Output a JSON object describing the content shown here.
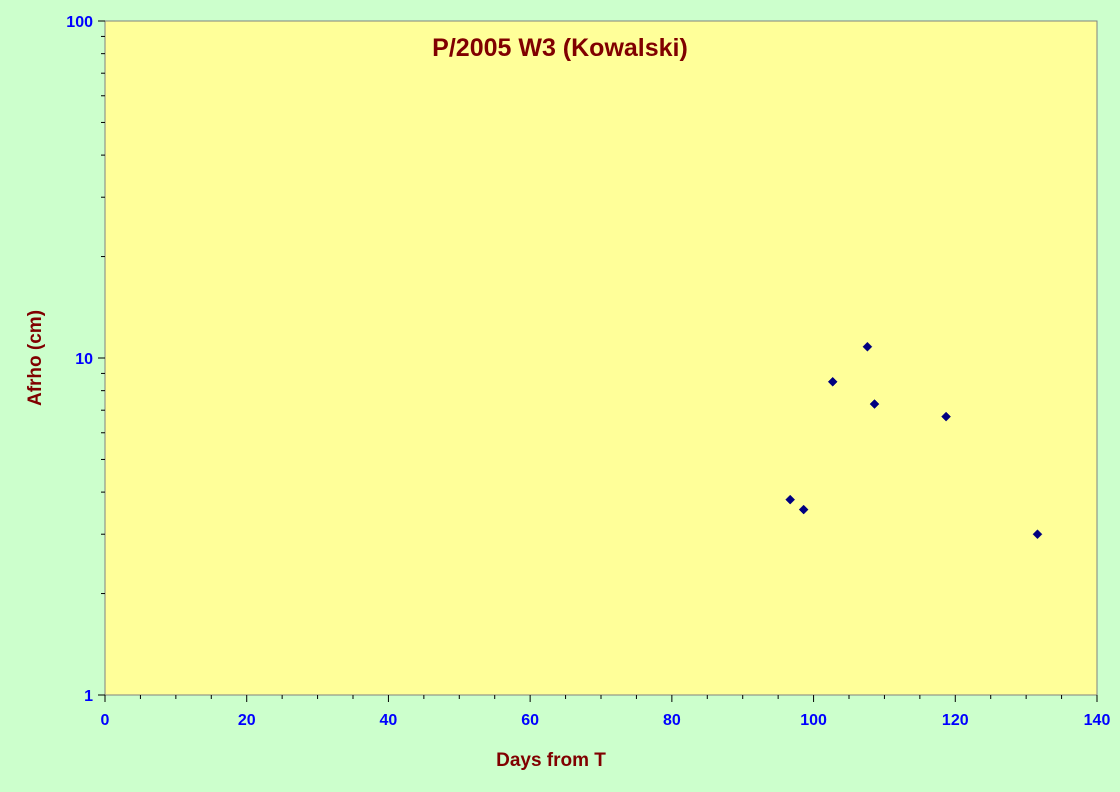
{
  "chart_data": {
    "type": "scatter",
    "title": "P/2005 W3 (Kowalski)",
    "xlabel": "Days from T",
    "ylabel": "Afrho (cm)",
    "xlim": [
      0,
      140
    ],
    "ylim": [
      1,
      100
    ],
    "yscale": "log",
    "x_ticks": [
      0,
      20,
      40,
      60,
      80,
      100,
      120,
      140
    ],
    "x_tick_labels": [
      "0",
      "20",
      "40",
      "60",
      "80",
      "100",
      "120",
      "140"
    ],
    "y_ticks": [
      1,
      10,
      100
    ],
    "y_tick_labels": [
      "1",
      "10",
      "100"
    ],
    "grid": false,
    "legend": "none",
    "marker": "diamond",
    "series": [
      {
        "points": [
          {
            "x": 96.7,
            "y": 3.8
          },
          {
            "x": 98.6,
            "y": 3.55
          },
          {
            "x": 102.7,
            "y": 8.5
          },
          {
            "x": 107.6,
            "y": 10.8
          },
          {
            "x": 108.6,
            "y": 7.3
          },
          {
            "x": 118.7,
            "y": 6.7
          },
          {
            "x": 131.6,
            "y": 3.0
          }
        ]
      }
    ]
  },
  "colors": {
    "outer_background": "#ccffcc",
    "plot_background": "#ffff99",
    "title": "#800000",
    "axis_title": "#800000",
    "tick_label": "#0000ff",
    "marker": "#000080",
    "axis_line": "#808080"
  }
}
